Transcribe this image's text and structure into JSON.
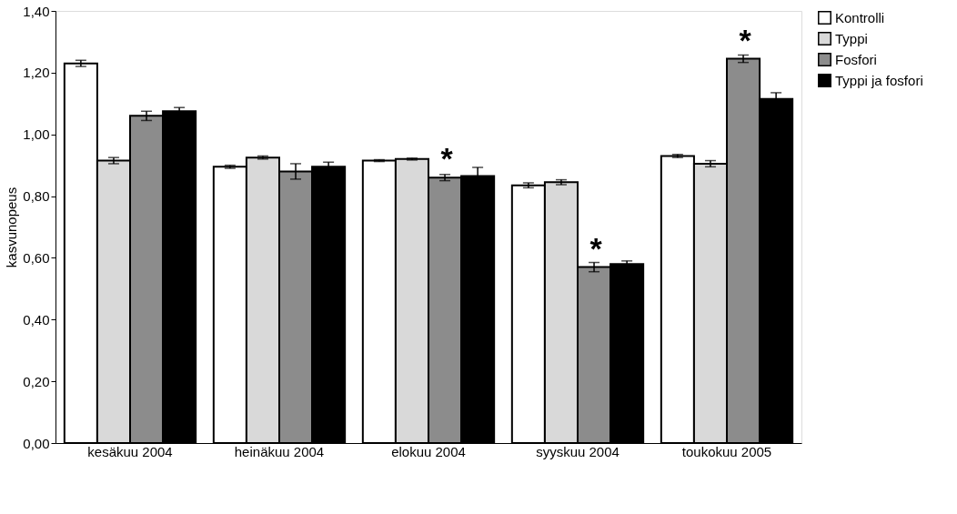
{
  "chart_data": {
    "type": "bar",
    "ylabel": "kasvunopeus",
    "categories": [
      "kesäkuu 2004",
      "heinäkuu 2004",
      "elokuu 2004",
      "syyskuu 2004",
      "toukokuu 2005"
    ],
    "series": [
      {
        "name": "Kontrolli",
        "color": "#ffffff",
        "values": [
          1.23,
          0.895,
          0.915,
          0.835,
          0.93
        ],
        "errors": [
          0.01,
          0.005,
          0.003,
          0.008,
          0.005
        ]
      },
      {
        "name": "Typpi",
        "color": "#d9d9d9",
        "values": [
          0.915,
          0.925,
          0.92,
          0.845,
          0.905
        ],
        "errors": [
          0.01,
          0.005,
          0.003,
          0.008,
          0.01
        ]
      },
      {
        "name": "Fosfori",
        "color": "#8c8c8c",
        "values": [
          1.06,
          0.88,
          0.86,
          0.57,
          1.245
        ],
        "errors": [
          0.015,
          0.025,
          0.01,
          0.015,
          0.012
        ]
      },
      {
        "name": "Typpi ja fosfori",
        "color": "#000000",
        "values": [
          1.075,
          0.895,
          0.865,
          0.58,
          1.115
        ],
        "errors": [
          0.012,
          0.015,
          0.028,
          0.01,
          0.02
        ]
      }
    ],
    "ylim": [
      0,
      1.4
    ],
    "yticks": [
      {
        "value": 0,
        "label": "0,00"
      },
      {
        "value": 0.2,
        "label": "0,20"
      },
      {
        "value": 0.4,
        "label": "0,40"
      },
      {
        "value": 0.6,
        "label": "0,60"
      },
      {
        "value": 0.8,
        "label": "0,80"
      },
      {
        "value": 1.0,
        "label": "1,00"
      },
      {
        "value": 1.2,
        "label": "1,20"
      },
      {
        "value": 1.4,
        "label": "1,40"
      }
    ],
    "annotations": [
      {
        "text": "*",
        "x": "elokuu 2004",
        "y": 0.86
      },
      {
        "text": "*",
        "x": "syyskuu 2004",
        "y": 0.57
      },
      {
        "text": "*",
        "x": "toukokuu 2005",
        "y": 1.245
      }
    ],
    "grid": false,
    "legend": "right"
  }
}
